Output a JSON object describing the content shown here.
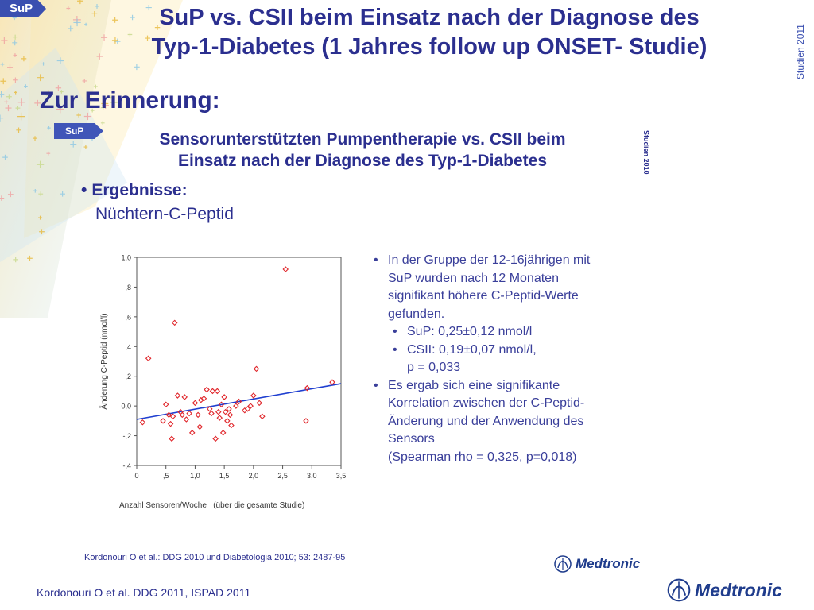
{
  "header": {
    "tag": "SuP",
    "title_line1": "SuP vs. CSII beim Einsatz nach der Diagnose des",
    "title_line2": "Typ-1-Diabetes (1 Jahres follow up ONSET- Studie)",
    "side_label": "Studien 2011",
    "subheading": "Zur Erinnerung:"
  },
  "slide": {
    "tag": "SuP",
    "title_line1": "Sensorunterstützten Pumpentherapie vs. CSII beim",
    "title_line2": "Einsatz nach der Diagnose des Typ-1-Diabetes",
    "side_label": "Studien 2010",
    "results_heading": "Ergebnisse:",
    "results_subheading": "Nüchtern-C-Peptid",
    "bullets": [
      {
        "level": 1,
        "lines": [
          "In der Gruppe der 12-16jährigen mit",
          "SuP wurden nach 12 Monaten",
          "signifikant höhere C-Peptid-Werte",
          "gefunden."
        ]
      },
      {
        "level": 2,
        "lines": [
          "SuP: 0,25±0,12 nmol/l"
        ]
      },
      {
        "level": 2,
        "lines": [
          "CSII: 0,19±0,07 nmol/l,",
          "p = 0,033"
        ]
      },
      {
        "level": 1,
        "lines": [
          "Es ergab sich eine signifikante",
          "Korrelation zwischen der C-Peptid-",
          "Änderung und der Anwendung des",
          "Sensors",
          "(Spearman rho = 0,325, p=0,018)"
        ]
      }
    ],
    "citation": "Kordonouri O et al.: DDG 2010 und Diabetologia 2010; 53: 2487-95",
    "logo_text": "Medtronic"
  },
  "footer": {
    "citation": "Kordonouri O et al. DDG 2011, ISPAD 2011",
    "logo_text": "Medtronic"
  },
  "colors": {
    "title": "#2b2f8f",
    "tag": "#3a4fb0",
    "points": "#e0262b",
    "regression": "#1f3fd0"
  },
  "chart_data": {
    "type": "scatter",
    "title": "",
    "xlabel": "Anzahl Sensoren/Woche   (über die gesamte Studie)",
    "ylabel": "Änderung C-Peptid (nmol/l)",
    "xlim": [
      0,
      3.5
    ],
    "ylim": [
      -0.4,
      1.0
    ],
    "x_ticks": [
      {
        "v": 0,
        "label": "0"
      },
      {
        "v": 0.5,
        "label": ",5"
      },
      {
        "v": 1,
        "label": "1,0"
      },
      {
        "v": 1.5,
        "label": "1,5"
      },
      {
        "v": 2,
        "label": "2,0"
      },
      {
        "v": 2.5,
        "label": "2,5"
      },
      {
        "v": 3,
        "label": "3,0"
      },
      {
        "v": 3.5,
        "label": "3,5"
      }
    ],
    "y_ticks": [
      {
        "v": 1,
        "label": "1,0"
      },
      {
        "v": 0.8,
        "label": ",8"
      },
      {
        "v": 0.6,
        "label": ",6"
      },
      {
        "v": 0.4,
        "label": ",4"
      },
      {
        "v": 0.2,
        "label": ",2"
      },
      {
        "v": 0,
        "label": "0,0"
      },
      {
        "v": -0.2,
        "label": "-,2"
      },
      {
        "v": -0.4,
        "label": "-,4"
      }
    ],
    "points": [
      [
        0.1,
        -0.11
      ],
      [
        0.2,
        0.32
      ],
      [
        0.45,
        -0.1
      ],
      [
        0.5,
        0.01
      ],
      [
        0.55,
        -0.06
      ],
      [
        0.58,
        -0.12
      ],
      [
        0.6,
        -0.22
      ],
      [
        0.62,
        -0.07
      ],
      [
        0.65,
        0.56
      ],
      [
        0.7,
        0.07
      ],
      [
        0.75,
        -0.04
      ],
      [
        0.78,
        -0.06
      ],
      [
        0.82,
        0.06
      ],
      [
        0.85,
        -0.09
      ],
      [
        0.9,
        -0.05
      ],
      [
        0.95,
        -0.18
      ],
      [
        1.0,
        0.02
      ],
      [
        1.05,
        -0.06
      ],
      [
        1.08,
        -0.14
      ],
      [
        1.1,
        0.04
      ],
      [
        1.15,
        0.05
      ],
      [
        1.2,
        0.11
      ],
      [
        1.25,
        -0.02
      ],
      [
        1.28,
        -0.05
      ],
      [
        1.3,
        0.1
      ],
      [
        1.35,
        -0.22
      ],
      [
        1.38,
        0.1
      ],
      [
        1.4,
        -0.04
      ],
      [
        1.42,
        -0.08
      ],
      [
        1.45,
        0.01
      ],
      [
        1.48,
        -0.18
      ],
      [
        1.5,
        0.06
      ],
      [
        1.52,
        -0.04
      ],
      [
        1.55,
        -0.1
      ],
      [
        1.58,
        -0.02
      ],
      [
        1.6,
        -0.06
      ],
      [
        1.62,
        -0.13
      ],
      [
        1.7,
        0.0
      ],
      [
        1.75,
        0.03
      ],
      [
        1.85,
        -0.03
      ],
      [
        1.9,
        -0.02
      ],
      [
        1.95,
        0.0
      ],
      [
        2.0,
        0.07
      ],
      [
        2.05,
        0.25
      ],
      [
        2.1,
        0.02
      ],
      [
        2.15,
        -0.07
      ],
      [
        2.55,
        0.92
      ],
      [
        2.9,
        -0.1
      ],
      [
        2.92,
        0.12
      ],
      [
        3.35,
        0.16
      ]
    ],
    "regression": {
      "x": [
        0,
        3.5
      ],
      "y": [
        -0.09,
        0.15
      ]
    },
    "grid": false,
    "legend": "none"
  }
}
